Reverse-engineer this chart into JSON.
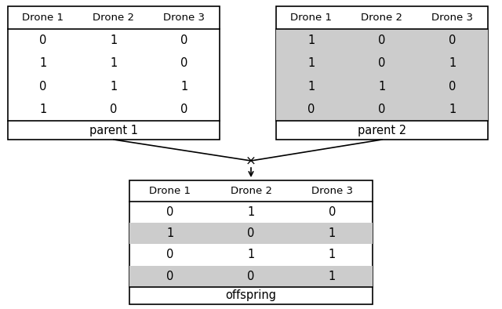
{
  "parent1": {
    "headers": [
      "Drone 1",
      "Drone 2",
      "Drone 3"
    ],
    "rows": [
      [
        0,
        1,
        0
      ],
      [
        1,
        1,
        0
      ],
      [
        0,
        1,
        1
      ],
      [
        1,
        0,
        0
      ]
    ],
    "row_colors": [
      "white",
      "white",
      "white",
      "white"
    ],
    "label": "parent 1"
  },
  "parent2": {
    "headers": [
      "Drone 1",
      "Drone 2",
      "Drone 3"
    ],
    "rows": [
      [
        1,
        0,
        0
      ],
      [
        1,
        0,
        1
      ],
      [
        1,
        1,
        0
      ],
      [
        0,
        0,
        1
      ]
    ],
    "row_colors": [
      "#cccccc",
      "#cccccc",
      "#cccccc",
      "#cccccc"
    ],
    "label": "parent 2"
  },
  "offspring": {
    "headers": [
      "Drone 1",
      "Drone 2",
      "Drone 3"
    ],
    "rows": [
      [
        0,
        1,
        0
      ],
      [
        1,
        0,
        1
      ],
      [
        0,
        1,
        1
      ],
      [
        0,
        0,
        1
      ]
    ],
    "row_colors": [
      "white",
      "#cccccc",
      "white",
      "#cccccc"
    ],
    "label": "offspring"
  },
  "gray_color": "#cccccc",
  "bg_color": "#ffffff",
  "text_color": "#000000",
  "header_fontsize": 9.5,
  "cell_fontsize": 10.5,
  "label_fontsize": 10.5
}
